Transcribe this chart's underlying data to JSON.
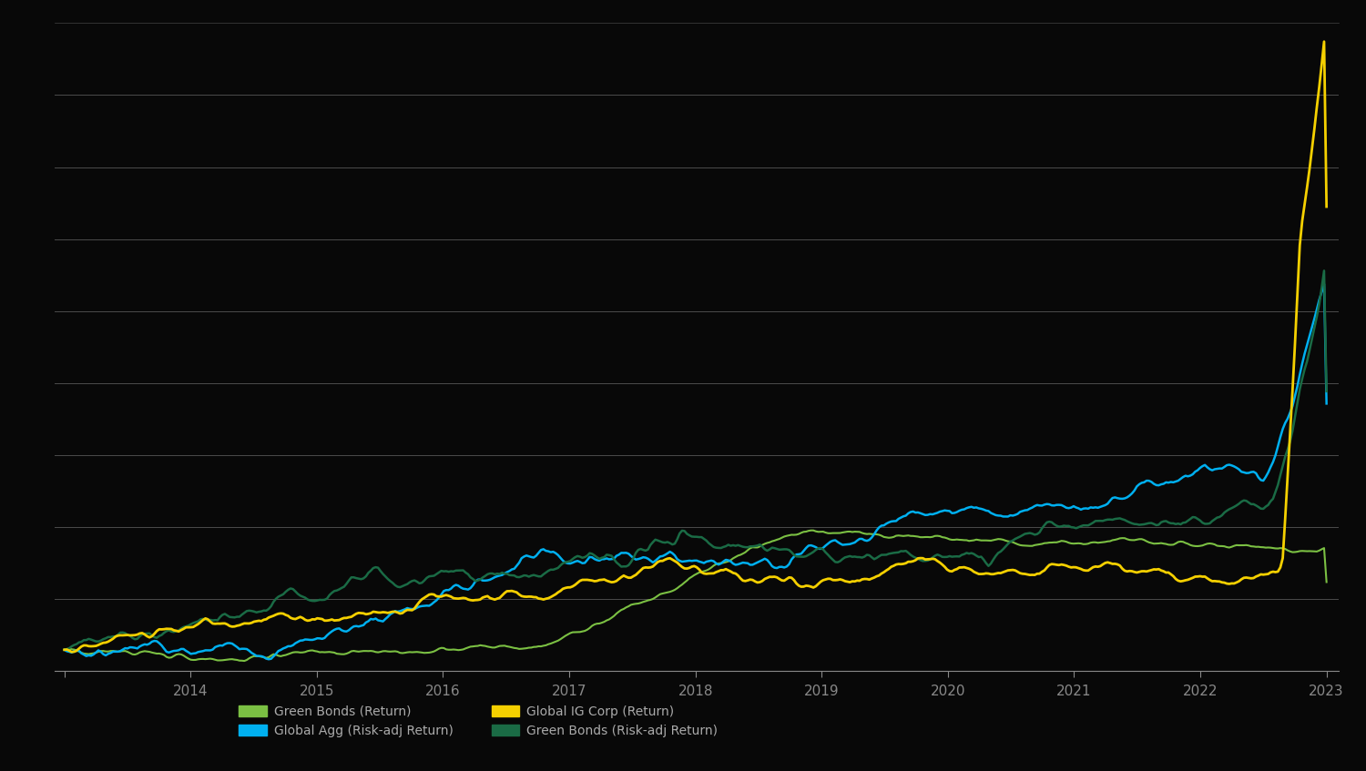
{
  "background_color": "#080808",
  "plot_bg_color": "#080808",
  "grid_color": "#c8c8c8",
  "grid_alpha": 0.35,
  "text_color": "#aaaaaa",
  "x_ticks": [
    "",
    "2014",
    "2015",
    "2016",
    "2017",
    "2018",
    "2019",
    "2020",
    "2021",
    "2022",
    "2023"
  ],
  "series": [
    {
      "label": "Green Bonds (Return)",
      "color": "#7bc043",
      "lw": 1.5
    },
    {
      "label": "Global IG Corp (Return)",
      "color": "#f5d000",
      "lw": 2.0
    },
    {
      "label": "Global Agg (Risk-adj)",
      "color": "#00b0f0",
      "lw": 1.8
    },
    {
      "label": "Green Bonds (Risk-adj)",
      "color": "#1a6b45",
      "lw": 1.8
    }
  ],
  "legend_items": [
    {
      "label": "Green Bonds (Return)",
      "color": "#7bc043"
    },
    {
      "label": "Global IG Corp (Return)",
      "color": "#f5d000"
    },
    {
      "label": "Global Agg (Risk-adj Return)",
      "color": "#00b0f0"
    },
    {
      "label": "Green Bonds (Risk-adj Return)",
      "color": "#1a6b45"
    }
  ],
  "n_points": 520,
  "n_years": 11
}
